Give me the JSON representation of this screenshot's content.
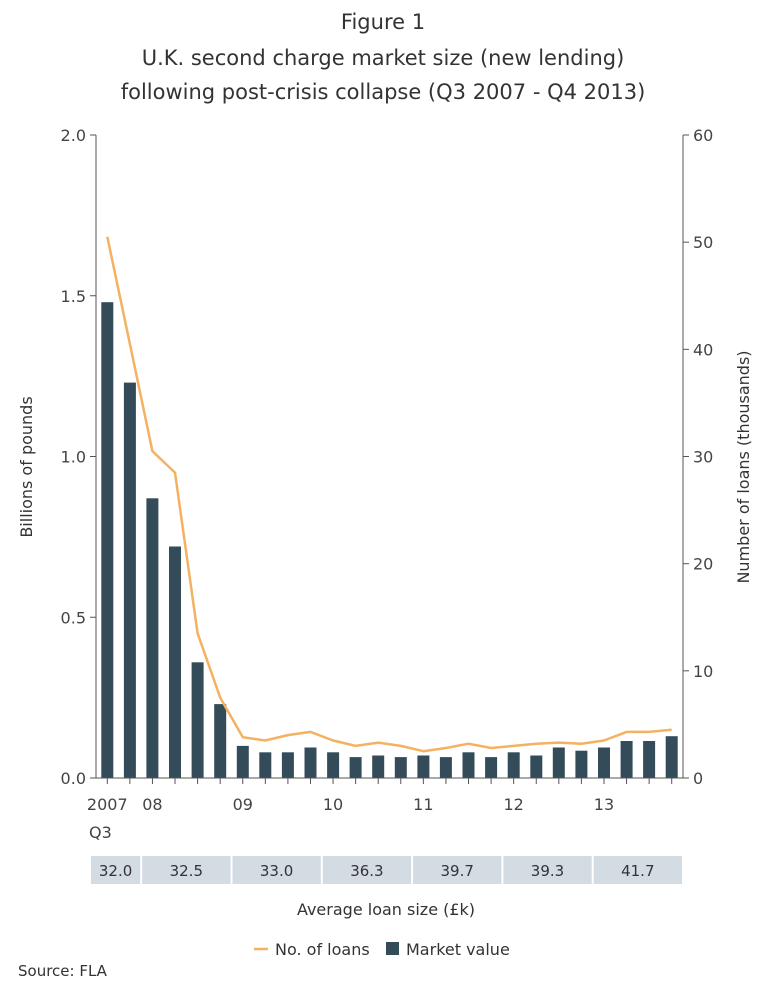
{
  "figure_label": "Figure 1",
  "chart_data": {
    "type": "bar+line",
    "title": "U.K. second charge market size (new lending)",
    "subtitle": "following post-crisis collapse (Q3 2007 - Q4 2013)",
    "ylabel_left": "Billions of pounds",
    "ylabel_right": "Number of loans (thousands)",
    "ylim_left": [
      0,
      2.0
    ],
    "ylim_right": [
      0,
      60
    ],
    "yticks_left": [
      "0.0",
      "0.5",
      "1.0",
      "1.5",
      "2.0"
    ],
    "yticks_right": [
      "0",
      "10",
      "20",
      "30",
      "40",
      "50",
      "60"
    ],
    "x_tick_labels": [
      "2007",
      "08",
      "09",
      "10",
      "11",
      "12",
      "13"
    ],
    "x_sub_label": "Q3",
    "quarters": [
      "2007Q3",
      "2007Q4",
      "2008Q1",
      "2008Q2",
      "2008Q3",
      "2008Q4",
      "2009Q1",
      "2009Q2",
      "2009Q3",
      "2009Q4",
      "2010Q1",
      "2010Q2",
      "2010Q3",
      "2010Q4",
      "2011Q1",
      "2011Q2",
      "2011Q3",
      "2011Q4",
      "2012Q1",
      "2012Q2",
      "2012Q3",
      "2012Q4",
      "2013Q1",
      "2013Q2",
      "2013Q3",
      "2013Q4"
    ],
    "series": [
      {
        "name": "Market value",
        "type": "bar",
        "axis": "left",
        "color": "#344c5a",
        "values": [
          1.48,
          1.23,
          0.87,
          0.72,
          0.36,
          0.23,
          0.1,
          0.08,
          0.08,
          0.095,
          0.08,
          0.065,
          0.07,
          0.065,
          0.07,
          0.065,
          0.08,
          0.065,
          0.08,
          0.07,
          0.095,
          0.085,
          0.095,
          0.115,
          0.115,
          0.13
        ]
      },
      {
        "name": "No. of loans",
        "type": "line",
        "axis": "right",
        "color": "#f5b162",
        "values": [
          50.5,
          40.5,
          30.5,
          28.5,
          13.5,
          7.5,
          3.8,
          3.5,
          4.0,
          4.3,
          3.5,
          3.0,
          3.3,
          3.0,
          2.5,
          2.8,
          3.2,
          2.8,
          3.0,
          3.2,
          3.3,
          3.2,
          3.5,
          4.3,
          4.3,
          4.5
        ]
      }
    ],
    "avg_loan_size": {
      "label": "Average loan size (£k)",
      "values": [
        "32.0",
        "32.5",
        "33.0",
        "36.3",
        "39.7",
        "39.3",
        "41.7"
      ]
    },
    "legend": {
      "position": "bottom-center"
    },
    "grid": false
  },
  "source": "Source: FLA"
}
